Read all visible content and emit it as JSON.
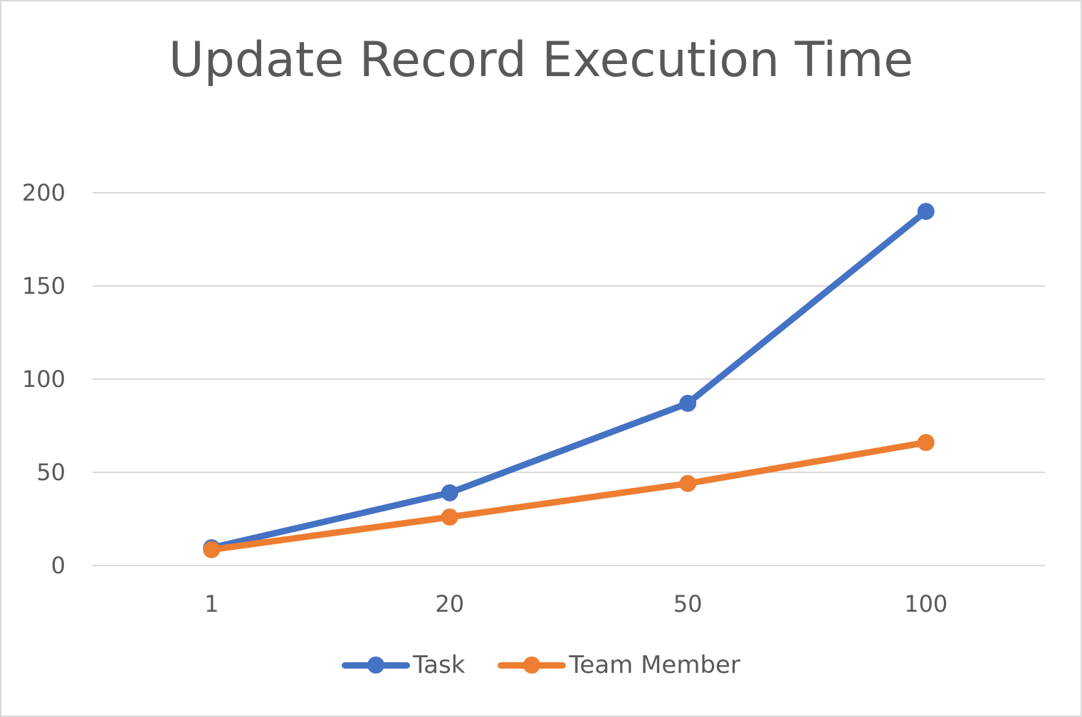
{
  "chart_data": {
    "type": "line",
    "title": "Update Record Execution Time",
    "xlabel": "",
    "ylabel": "",
    "categories": [
      "1",
      "20",
      "50",
      "100"
    ],
    "series": [
      {
        "name": "Task",
        "color": "#4472C4",
        "values": [
          9.5,
          39,
          87,
          190
        ]
      },
      {
        "name": "Team Member",
        "color": "#ED7D31",
        "values": [
          8.5,
          26,
          44,
          66
        ]
      }
    ],
    "ylim": [
      0,
      200
    ],
    "yticks": [
      0,
      50,
      100,
      150,
      200
    ],
    "grid": true,
    "legend_position": "bottom"
  },
  "legend": {
    "items": [
      {
        "label": "Task",
        "color": "#4472C4"
      },
      {
        "label": "Team Member",
        "color": "#ED7D31"
      }
    ]
  }
}
